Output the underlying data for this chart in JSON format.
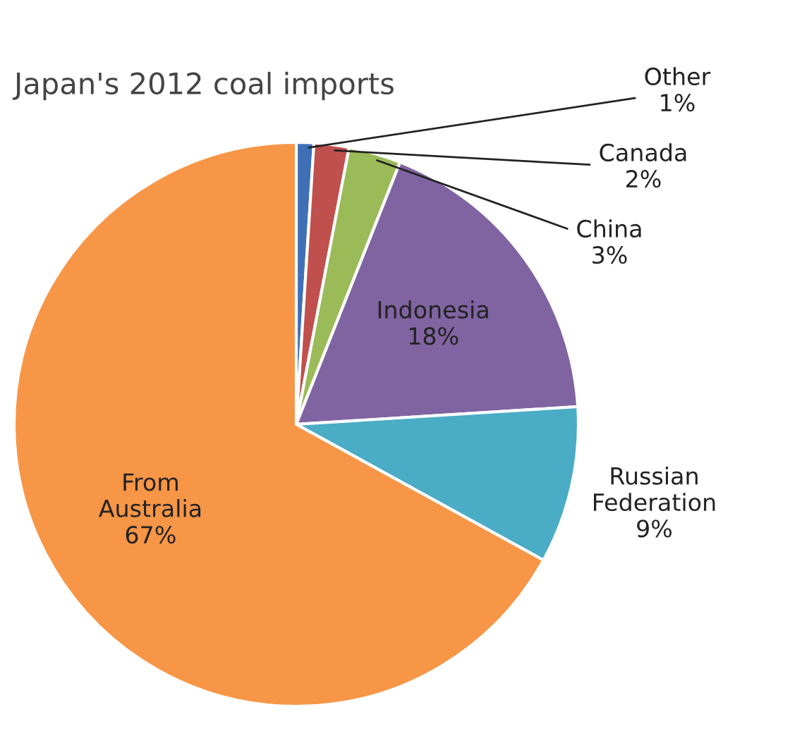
{
  "chart_data": {
    "type": "pie",
    "title": "Japan's 2012 coal imports",
    "categories": [
      "Other",
      "Canada",
      "China",
      "Indonesia",
      "Russian\nFederation",
      "From\nAustralia"
    ],
    "values": [
      1,
      2,
      3,
      18,
      9,
      67
    ],
    "value_labels": [
      "1%",
      "2%",
      "3%",
      "18%",
      "9%",
      "67%"
    ],
    "colors": [
      "#3f6fb6",
      "#c0504d",
      "#9bbb59",
      "#8064a2",
      "#4bacc6",
      "#f79646"
    ]
  }
}
